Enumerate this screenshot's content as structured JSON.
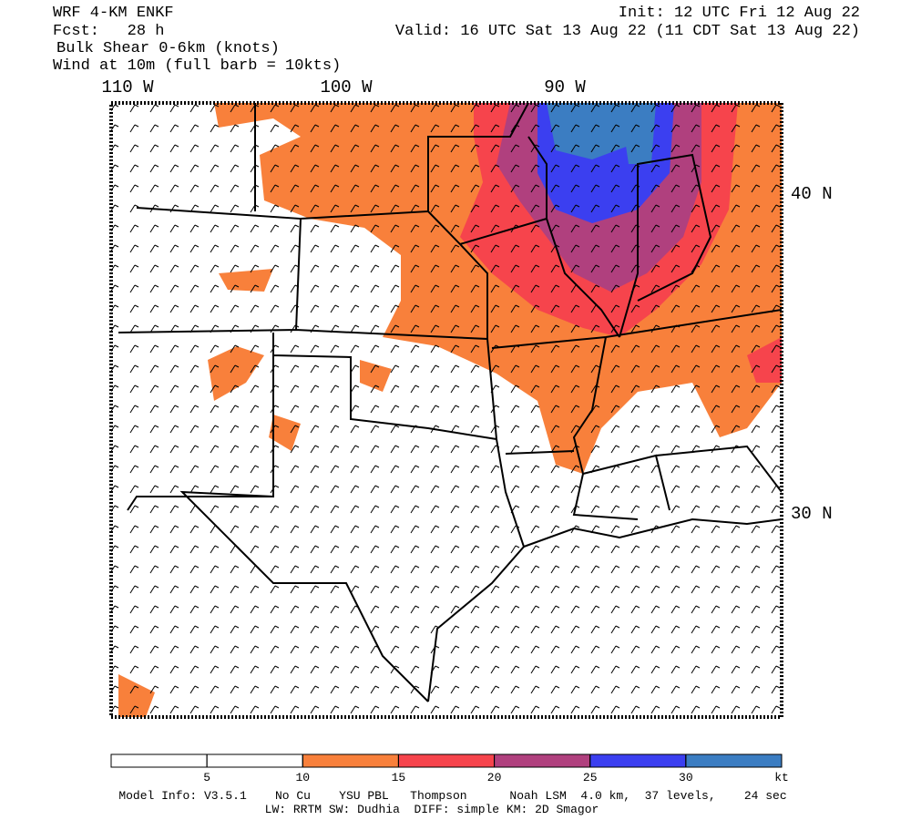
{
  "header": {
    "model": "WRF 4-KM ENKF",
    "forecast": "Fcst:   28 h",
    "field": "Bulk Shear 0-6km (knots)",
    "wind": "Wind at 10m (full barb = 10kts)",
    "init": "Init: 12 UTC Fri 12 Aug 22",
    "valid": "Valid: 16 UTC Sat 13 Aug 22 (11 CDT Sat 13 Aug 22)"
  },
  "map": {
    "longitude_labels": [
      "110 W",
      "100 W",
      "90 W"
    ],
    "latitude_labels": [
      "40 N",
      "30 N"
    ]
  },
  "colorbar": {
    "range": [
      0,
      35
    ],
    "ticks": [
      5,
      10,
      15,
      20,
      25,
      30
    ],
    "unit": "kt",
    "colors": [
      "#ffffff",
      "#ffffff",
      "#f8803b",
      "#f6444c",
      "#b0407e",
      "#3b3ff0",
      "#3b7dc2"
    ]
  },
  "footer": {
    "model_info": "Model Info: V3.5.1    No Cu    YSU PBL   Thompson      Noah LSM  4.0 km,  37 levels,    24 sec",
    "physics": "LW: RRTM SW: Dudhia  DIFF: simple KM: 2D Smagor"
  }
}
